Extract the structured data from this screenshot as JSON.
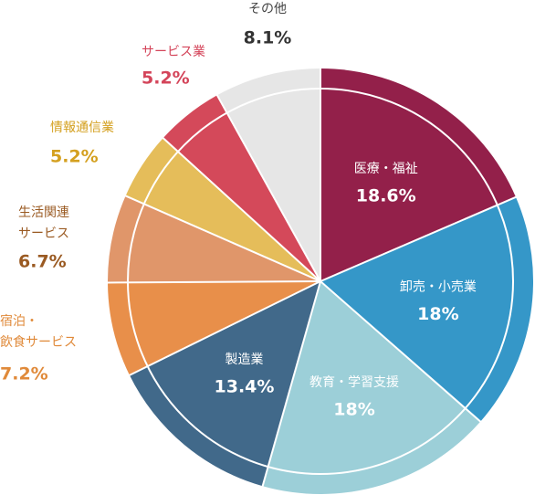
{
  "chart_data": {
    "type": "pie",
    "categories": [
      "医療・福祉",
      "卸売・小売業",
      "教育・学習支援",
      "製造業",
      "宿泊・\n飲食サービス",
      "生活関連\nサービス",
      "情報通信業",
      "サービス業",
      "その他"
    ],
    "values": [
      18.6,
      18,
      18,
      13.4,
      7.2,
      6.7,
      5.2,
      5.2,
      8.1
    ],
    "value_labels": [
      "18.6%",
      "18%",
      "18%",
      "13.4%",
      "7.2%",
      "6.7%",
      "5.2%",
      "5.2%",
      "8.1%"
    ],
    "colors": [
      "#93204a",
      "#3597c8",
      "#9ccfd8",
      "#41698a",
      "#e88f4a",
      "#e0966a",
      "#e5bd5a",
      "#d4495a",
      "#e6e6e6"
    ],
    "label_colors": [
      "#ffffff",
      "#ffffff",
      "#ffffff",
      "#ffffff",
      "#e08a3a",
      "#9a5a22",
      "#d4a020",
      "#d4455a",
      "#444444"
    ]
  }
}
